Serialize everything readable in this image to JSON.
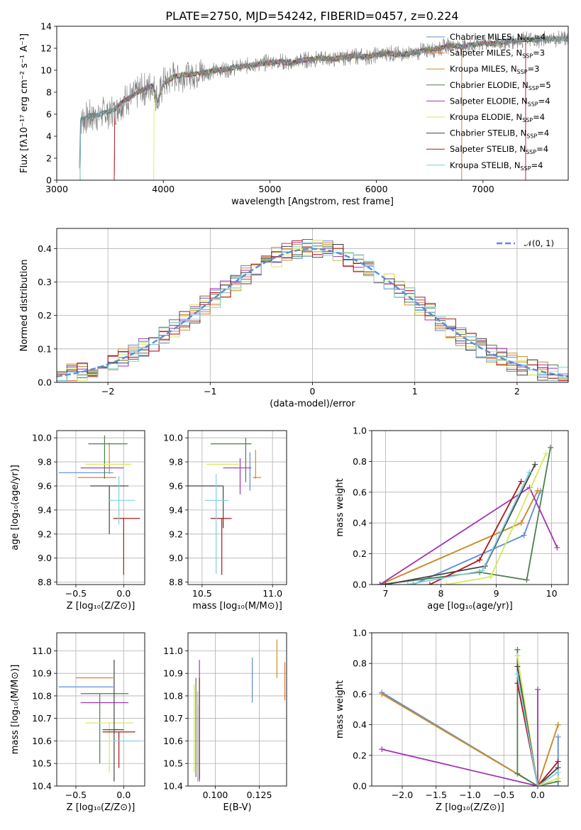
{
  "figure": {
    "title": "PLATE=2750, MJD=54242, FIBERID=0457, z=0.224"
  },
  "series_legend": [
    {
      "label": "Chabrier MILES, N",
      "sub": "SSP",
      "suffix": "=4",
      "color": "#5b8bd9"
    },
    {
      "label": "Salpeter MILES, N",
      "sub": "SSP",
      "suffix": "=3",
      "color": "#e07a3a"
    },
    {
      "label": "Kroupa MILES, N",
      "sub": "SSP",
      "suffix": "=3",
      "color": "#c7902c"
    },
    {
      "label": "Chabrier ELODIE, N",
      "sub": "SSP",
      "suffix": "=5",
      "color": "#4f7e4f"
    },
    {
      "label": "Salpeter ELODIE, N",
      "sub": "SSP",
      "suffix": "=4",
      "color": "#a033b3"
    },
    {
      "label": "Kroupa ELODIE, N",
      "sub": "SSP",
      "suffix": "=4",
      "color": "#d6e85e"
    },
    {
      "label": "Chabrier STELIB, N",
      "sub": "SSP",
      "suffix": "=4",
      "color": "#444444"
    },
    {
      "label": "Salpeter STELIB, N",
      "sub": "SSP",
      "suffix": "=4",
      "color": "#b01818"
    },
    {
      "label": "Kroupa STELIB, N",
      "sub": "SSP",
      "suffix": "=4",
      "color": "#7fd0df"
    }
  ],
  "chart_data": [
    {
      "id": "spectrum",
      "type": "line",
      "title": "PLATE=2750, MJD=54242, FIBERID=0457, z=0.224",
      "xlabel": "wavelength [Angstrom, rest frame]",
      "ylabel": "Flux [fλ10⁻¹⁷ erg cm⁻² s⁻¹ A⁻¹]",
      "xlim": [
        3000,
        7800
      ],
      "ylim": [
        0,
        14
      ],
      "xticks": [
        3000,
        4000,
        5000,
        6000,
        7000
      ],
      "yticks": [
        0,
        2,
        4,
        6,
        8,
        10,
        12,
        14
      ],
      "data_color": "#808080",
      "data_samples": [
        [
          3210,
          0
        ],
        [
          3220,
          5.5
        ],
        [
          3300,
          5.8
        ],
        [
          3400,
          6.0
        ],
        [
          3480,
          6.2
        ],
        [
          3550,
          6.5
        ],
        [
          3600,
          7.0
        ],
        [
          3700,
          7.6
        ],
        [
          3800,
          8.2
        ],
        [
          3900,
          8.6
        ],
        [
          3950,
          7.2
        ],
        [
          4000,
          8.8
        ],
        [
          4100,
          9.4
        ],
        [
          4200,
          9.6
        ],
        [
          4300,
          9.7
        ],
        [
          4400,
          9.8
        ],
        [
          4500,
          10.0
        ],
        [
          4600,
          10.1
        ],
        [
          4700,
          10.3
        ],
        [
          4800,
          10.4
        ],
        [
          4900,
          10.6
        ],
        [
          5000,
          10.7
        ],
        [
          5100,
          10.8
        ],
        [
          5200,
          10.6
        ],
        [
          5300,
          10.9
        ],
        [
          5400,
          11.0
        ],
        [
          5500,
          11.1
        ],
        [
          5600,
          11.0
        ],
        [
          5700,
          11.2
        ],
        [
          5800,
          11.3
        ],
        [
          5900,
          11.2
        ],
        [
          6000,
          11.4
        ],
        [
          6100,
          11.6
        ],
        [
          6200,
          11.4
        ],
        [
          6300,
          11.5
        ],
        [
          6400,
          11.7
        ],
        [
          6500,
          11.9
        ],
        [
          6600,
          12.0
        ],
        [
          6700,
          12.3
        ],
        [
          6800,
          12.1
        ],
        [
          6900,
          12.3
        ],
        [
          7000,
          12.5
        ],
        [
          7100,
          12.4
        ],
        [
          7200,
          12.6
        ],
        [
          7300,
          12.7
        ],
        [
          7400,
          12.8
        ],
        [
          7500,
          12.7
        ],
        [
          7600,
          12.9
        ],
        [
          7700,
          12.8
        ],
        [
          7800,
          12.9
        ]
      ],
      "model_start": [
        3220,
        3540,
        3540,
        3220,
        3540,
        3910,
        3220,
        3540,
        3220
      ],
      "model_end": [
        7800,
        6800,
        6800,
        7800,
        7400,
        7800,
        7800,
        7400,
        7800
      ],
      "legend_position": "upper-right"
    },
    {
      "id": "residual-histogram",
      "type": "histogram",
      "xlabel": "(data-model)/error",
      "ylabel": "Normed distribution",
      "xlim": [
        -2.5,
        2.5
      ],
      "ylim": [
        0,
        0.46
      ],
      "xticks": [
        -2,
        -1,
        0,
        1,
        2
      ],
      "yticks": [
        0.0,
        0.1,
        0.2,
        0.3,
        0.4
      ],
      "grid": true,
      "reference_curve": {
        "label": "𝒩(0, 1)",
        "color": "#5b8bd9"
      },
      "legend_position": "upper-right",
      "bin_width": 0.1
    },
    {
      "id": "age-vs-Z",
      "type": "errorbar",
      "xlabel": "Z [log₁₀(Z/Z⊙)]",
      "ylabel": "age  [log₁₀(age/yr)]",
      "xlim": [
        -0.7,
        0.22
      ],
      "ylim": [
        8.78,
        10.06
      ],
      "xticks": [
        -0.5,
        0.0
      ],
      "yticks": [
        8.8,
        9.0,
        9.2,
        9.4,
        9.6,
        9.8,
        10.0
      ],
      "grid": true,
      "points": [
        {
          "x": -0.35,
          "y": 9.71,
          "xerr": [
            0.33,
            0.24
          ],
          "yerr": [
            0.0,
            0.0
          ]
        },
        {
          "x": -0.1,
          "y": 9.67,
          "xerr": [
            0.38,
            0.02
          ],
          "yerr": [
            0.0,
            0.0
          ]
        },
        {
          "x": -0.15,
          "y": 9.8,
          "xerr": [
            0.0,
            0.0
          ],
          "yerr": [
            0.1,
            0.16
          ]
        },
        {
          "x": -0.2,
          "y": 9.95,
          "xerr": [
            0.17,
            0.24
          ],
          "yerr": [
            0.29,
            0.07
          ]
        },
        {
          "x": -0.2,
          "y": 9.75,
          "xerr": [
            0.25,
            0.2
          ],
          "yerr": [
            0.0,
            0.0
          ]
        },
        {
          "x": -0.15,
          "y": 9.78,
          "xerr": [
            0.25,
            0.23
          ],
          "yerr": [
            0.0,
            0.0
          ]
        },
        {
          "x": -0.15,
          "y": 9.6,
          "xerr": [
            0.2,
            0.2
          ],
          "yerr": [
            0.4,
            0.0
          ]
        },
        {
          "x": 0.0,
          "y": 9.33,
          "xerr": [
            0.11,
            0.17
          ],
          "yerr": [
            0.47,
            0.0
          ]
        },
        {
          "x": -0.05,
          "y": 9.48,
          "xerr": [
            0.11,
            0.17
          ],
          "yerr": [
            0.2,
            0.2
          ]
        }
      ]
    },
    {
      "id": "age-vs-mass",
      "type": "errorbar",
      "xlabel": "mass [log₁₀(M/M⊙)]",
      "ylabel": "",
      "xlim": [
        10.4,
        11.1
      ],
      "ylim": [
        8.78,
        10.06
      ],
      "xticks": [
        10.5,
        11.0
      ],
      "yticks": [
        8.8,
        9.0,
        9.2,
        9.4,
        9.6,
        9.8,
        10.0
      ],
      "grid": true,
      "points": [
        {
          "x": 10.84,
          "y": 9.72,
          "xerr": [
            0.0,
            0.0
          ],
          "yerr": [
            0.16,
            0.16
          ]
        },
        {
          "x": 10.88,
          "y": 9.67,
          "xerr": [
            0.02,
            0.04
          ],
          "yerr": [
            0.0,
            0.0
          ]
        },
        {
          "x": 10.88,
          "y": 9.78,
          "xerr": [
            0.0,
            0.0
          ],
          "yerr": [
            0.12,
            0.12
          ]
        },
        {
          "x": 10.81,
          "y": 9.95,
          "xerr": [
            0.25,
            0.04
          ],
          "yerr": [
            0.32,
            0.05
          ]
        },
        {
          "x": 10.77,
          "y": 9.75,
          "xerr": [
            0.12,
            0.08
          ],
          "yerr": [
            0.22,
            0.08
          ]
        },
        {
          "x": 10.68,
          "y": 9.78,
          "xerr": [
            0.15,
            0.08
          ],
          "yerr": [
            0.0,
            0.0
          ]
        },
        {
          "x": 10.65,
          "y": 9.6,
          "xerr": [
            0.25,
            0.0
          ],
          "yerr": [
            0.35,
            0.0
          ]
        },
        {
          "x": 10.64,
          "y": 9.33,
          "xerr": [
            0.08,
            0.07
          ],
          "yerr": [
            0.47,
            0.0
          ]
        },
        {
          "x": 10.6,
          "y": 9.48,
          "xerr": [
            0.08,
            0.09
          ],
          "yerr": [
            0.61,
            0.22
          ]
        }
      ]
    },
    {
      "id": "mass-weight-vs-age",
      "type": "line",
      "xlabel": "age  [log₁₀(age/yr)]",
      "ylabel": "mass weight",
      "xlim": [
        6.75,
        10.3
      ],
      "ylim": [
        0,
        1
      ],
      "xticks": [
        7,
        8,
        9,
        10
      ],
      "yticks": [
        0.0,
        0.2,
        0.4,
        0.6,
        0.8,
        1.0
      ],
      "grid": true,
      "series": [
        {
          "x": [
            7.5,
            9.5,
            9.8
          ],
          "y": [
            0.0,
            0.32,
            0.61
          ]
        },
        {
          "x": [
            6.9,
            9.45,
            9.75
          ],
          "y": [
            0.0,
            0.4,
            0.61
          ]
        },
        {
          "x": [
            6.9,
            9.45,
            9.75
          ],
          "y": [
            0.0,
            0.4,
            0.61
          ]
        },
        {
          "x": [
            6.9,
            8.7,
            9.55,
            9.98
          ],
          "y": [
            0.0,
            0.08,
            0.03,
            0.89
          ]
        },
        {
          "x": [
            6.9,
            9.6,
            10.1
          ],
          "y": [
            0.0,
            0.63,
            0.24
          ]
        },
        {
          "x": [
            8.1,
            8.9,
            9.9
          ],
          "y": [
            0.0,
            0.05,
            0.85
          ]
        },
        {
          "x": [
            7.0,
            8.8,
            9.7
          ],
          "y": [
            0.0,
            0.12,
            0.78
          ]
        },
        {
          "x": [
            7.8,
            8.7,
            9.45
          ],
          "y": [
            0.0,
            0.16,
            0.67
          ]
        },
        {
          "x": [
            7.4,
            8.75,
            9.6
          ],
          "y": [
            0.0,
            0.09,
            0.73
          ]
        }
      ]
    },
    {
      "id": "mass-vs-Z",
      "type": "errorbar",
      "xlabel": "Z [log₁₀(Z/Z⊙)]",
      "ylabel": "mass [log₁₀(M/M⊙)]",
      "xlim": [
        -0.7,
        0.22
      ],
      "ylim": [
        10.4,
        11.08
      ],
      "xticks": [
        -0.5,
        0.0
      ],
      "yticks": [
        10.4,
        10.5,
        10.6,
        10.7,
        10.8,
        10.9,
        11.0
      ],
      "grid": true,
      "points": [
        {
          "x": -0.35,
          "y": 10.84,
          "xerr": [
            0.33,
            0.24
          ],
          "yerr": [
            0.0,
            0.0
          ]
        },
        {
          "x": -0.25,
          "y": 10.88,
          "xerr": [
            0.25,
            0.14
          ],
          "yerr": [
            0.0,
            0.0
          ]
        },
        {
          "x": -0.3,
          "y": 11.0,
          "xerr": [
            0.0,
            0.0
          ],
          "yerr": [
            0.0,
            0.0
          ]
        },
        {
          "x": -0.25,
          "y": 10.81,
          "xerr": [
            0.2,
            0.3
          ],
          "yerr": [
            0.31,
            0.0
          ]
        },
        {
          "x": -0.2,
          "y": 10.77,
          "xerr": [
            0.25,
            0.25
          ],
          "yerr": [
            0.0,
            0.0
          ]
        },
        {
          "x": -0.15,
          "y": 10.68,
          "xerr": [
            0.25,
            0.25
          ],
          "yerr": [
            0.22,
            0.0
          ]
        },
        {
          "x": -0.1,
          "y": 10.65,
          "xerr": [
            0.12,
            0.1
          ],
          "yerr": [
            0.23,
            0.31
          ]
        },
        {
          "x": -0.05,
          "y": 10.64,
          "xerr": [
            0.17,
            0.17
          ],
          "yerr": [
            0.16,
            0.0
          ]
        },
        {
          "x": 0.0,
          "y": 10.6,
          "xerr": [
            0.11,
            0.17
          ],
          "yerr": [
            0.0,
            0.0
          ]
        }
      ]
    },
    {
      "id": "mass-vs-EBV",
      "type": "errorbar",
      "xlabel": "E(B-V)",
      "ylabel": "",
      "xlim": [
        0.0845,
        0.1405
      ],
      "ylim": [
        10.4,
        11.08
      ],
      "xticks": [
        0.1,
        0.125
      ],
      "yticks": [
        10.4,
        10.5,
        10.6,
        10.7,
        10.8,
        10.9,
        11.0
      ],
      "grid": true,
      "points": [
        {
          "x": 0.121,
          "y": 10.87,
          "xerr": [
            0.0,
            0.0
          ],
          "yerr": [
            0.1,
            0.1
          ]
        },
        {
          "x": 0.1395,
          "y": 10.87,
          "xerr": [
            0.0,
            0.0
          ],
          "yerr": [
            0.09,
            0.08
          ]
        },
        {
          "x": 0.135,
          "y": 10.97,
          "xerr": [
            0.0,
            0.0
          ],
          "yerr": [
            0.09,
            0.08
          ]
        },
        {
          "x": 0.089,
          "y": 10.66,
          "xerr": [
            0.0,
            0.0
          ],
          "yerr": [
            0.22,
            0.22
          ]
        },
        {
          "x": 0.091,
          "y": 10.7,
          "xerr": [
            0.0,
            0.0
          ],
          "yerr": [
            0.28,
            0.26
          ]
        },
        {
          "x": 0.088,
          "y": 10.65,
          "xerr": [
            0.0,
            0.0
          ],
          "yerr": [
            0.19,
            0.2
          ]
        },
        {
          "x": 0.09,
          "y": 10.6,
          "xerr": [
            0.0,
            0.0
          ],
          "yerr": [
            0.18,
            0.16
          ]
        },
        {
          "x": 0.091,
          "y": 10.66,
          "xerr": [
            0.0,
            0.0
          ],
          "yerr": [
            0.23,
            0.22
          ]
        },
        {
          "x": 0.09,
          "y": 10.62,
          "xerr": [
            0.0,
            0.0
          ],
          "yerr": [
            0.2,
            0.2
          ]
        }
      ]
    },
    {
      "id": "mass-weight-vs-Z",
      "type": "line",
      "xlabel": "Z [log₁₀(Z/Z⊙)]",
      "ylabel": "mass weight",
      "xlim": [
        -2.45,
        0.45
      ],
      "ylim": [
        0,
        1
      ],
      "xticks": [
        -2.0,
        -1.5,
        -1.0,
        -0.5,
        0.0
      ],
      "yticks": [
        0.0,
        0.2,
        0.4,
        0.6,
        0.8,
        1.0
      ],
      "grid": true,
      "series": [
        {
          "x": [
            -2.3,
            0.0,
            0.3,
            0.3
          ],
          "y": [
            0.61,
            0.0,
            0.0,
            0.32
          ]
        },
        {
          "x": [
            -2.3,
            0.0,
            0.3
          ],
          "y": [
            0.6,
            0.0,
            0.4
          ]
        },
        {
          "x": [
            -2.3,
            0.0,
            0.3
          ],
          "y": [
            0.6,
            0.0,
            0.4
          ]
        },
        {
          "x": [
            -0.3,
            -0.3,
            0.0,
            0.3
          ],
          "y": [
            0.89,
            0.08,
            0.0,
            0.03
          ]
        },
        {
          "x": [
            -2.3,
            0.0,
            0.0
          ],
          "y": [
            0.24,
            0.0,
            0.63
          ]
        },
        {
          "x": [
            -0.3,
            0.0,
            0.3
          ],
          "y": [
            0.85,
            0.0,
            0.05
          ]
        },
        {
          "x": [
            -0.3,
            0.0,
            0.3
          ],
          "y": [
            0.78,
            0.0,
            0.12
          ]
        },
        {
          "x": [
            -0.3,
            0.0,
            0.3
          ],
          "y": [
            0.67,
            0.0,
            0.16
          ]
        },
        {
          "x": [
            -0.3,
            0.0,
            0.3
          ],
          "y": [
            0.73,
            0.0,
            0.09
          ]
        }
      ]
    }
  ]
}
